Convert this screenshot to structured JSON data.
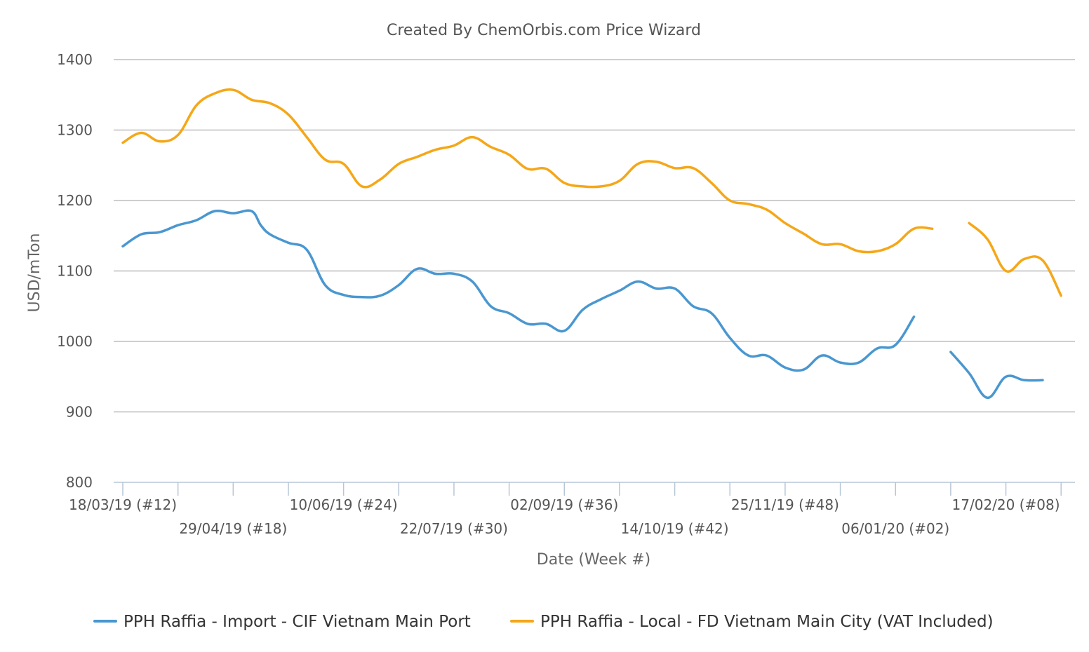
{
  "chart_data": {
    "type": "line",
    "title": "Created By ChemOrbis.com Price Wizard",
    "xlabel": "Date (Week #)",
    "ylabel": "USD/mTon",
    "ylim": [
      800,
      1400
    ],
    "yticks": [
      800,
      900,
      1000,
      1100,
      1200,
      1300,
      1400
    ],
    "grid": true,
    "legend_position": "bottom",
    "x_tick_labels": [
      {
        "week": 0,
        "label": "18/03/19 (#12)"
      },
      {
        "week": 6,
        "label": "29/04/19 (#18)"
      },
      {
        "week": 12,
        "label": "10/06/19 (#24)"
      },
      {
        "week": 18,
        "label": "22/07/19 (#30)"
      },
      {
        "week": 24,
        "label": "02/09/19 (#36)"
      },
      {
        "week": 30,
        "label": "14/10/19 (#42)"
      },
      {
        "week": 36,
        "label": "25/11/19 (#48)"
      },
      {
        "week": 42,
        "label": "06/01/20 (#02)"
      },
      {
        "week": 48,
        "label": "17/02/20 (#08)"
      }
    ],
    "series": [
      {
        "name": "PPH Raffia - Import - CIF Vietnam Main Port",
        "color": "#4a97d0",
        "points": [
          [
            0,
            1135
          ],
          [
            1,
            1152
          ],
          [
            2,
            1155
          ],
          [
            3,
            1165
          ],
          [
            4,
            1172
          ],
          [
            5,
            1185
          ],
          [
            6,
            1182
          ],
          [
            7,
            1185
          ],
          [
            7.5,
            1165
          ],
          [
            8,
            1152
          ],
          [
            9,
            1140
          ],
          [
            10,
            1130
          ],
          [
            11,
            1080
          ],
          [
            12,
            1066
          ],
          [
            13,
            1063
          ],
          [
            14,
            1065
          ],
          [
            15,
            1080
          ],
          [
            16,
            1103
          ],
          [
            17,
            1096
          ],
          [
            18,
            1096
          ],
          [
            19,
            1085
          ],
          [
            20,
            1050
          ],
          [
            21,
            1040
          ],
          [
            22,
            1025
          ],
          [
            23,
            1025
          ],
          [
            24,
            1015
          ],
          [
            25,
            1045
          ],
          [
            26,
            1060
          ],
          [
            27,
            1072
          ],
          [
            28,
            1085
          ],
          [
            29,
            1075
          ],
          [
            30,
            1075
          ],
          [
            31,
            1050
          ],
          [
            32,
            1040
          ],
          [
            33,
            1005
          ],
          [
            34,
            980
          ],
          [
            35,
            980
          ],
          [
            36,
            963
          ],
          [
            37,
            960
          ],
          [
            38,
            980
          ],
          [
            39,
            970
          ],
          [
            40,
            970
          ],
          [
            41,
            990
          ],
          [
            42,
            995
          ],
          [
            43,
            1035
          ],
          [
            45,
            985
          ],
          [
            46,
            955
          ],
          [
            47,
            920
          ],
          [
            48,
            950
          ],
          [
            49,
            945
          ],
          [
            50,
            945
          ]
        ]
      },
      {
        "name": "PPH Raffia - Local - FD Vietnam Main City (VAT Included)",
        "color": "#f5a718",
        "points": [
          [
            0,
            1282
          ],
          [
            1,
            1296
          ],
          [
            2,
            1284
          ],
          [
            3,
            1293
          ],
          [
            4,
            1335
          ],
          [
            5,
            1352
          ],
          [
            6,
            1357
          ],
          [
            7,
            1343
          ],
          [
            8,
            1338
          ],
          [
            9,
            1322
          ],
          [
            10,
            1290
          ],
          [
            11,
            1258
          ],
          [
            12,
            1252
          ],
          [
            13,
            1220
          ],
          [
            14,
            1230
          ],
          [
            15,
            1252
          ],
          [
            16,
            1262
          ],
          [
            17,
            1272
          ],
          [
            18,
            1278
          ],
          [
            19,
            1290
          ],
          [
            20,
            1276
          ],
          [
            21,
            1265
          ],
          [
            22,
            1245
          ],
          [
            23,
            1245
          ],
          [
            24,
            1225
          ],
          [
            25,
            1220
          ],
          [
            26,
            1220
          ],
          [
            27,
            1228
          ],
          [
            28,
            1252
          ],
          [
            29,
            1255
          ],
          [
            30,
            1246
          ],
          [
            31,
            1246
          ],
          [
            32,
            1225
          ],
          [
            33,
            1200
          ],
          [
            34,
            1195
          ],
          [
            35,
            1187
          ],
          [
            36,
            1168
          ],
          [
            37,
            1153
          ],
          [
            38,
            1138
          ],
          [
            39,
            1138
          ],
          [
            40,
            1128
          ],
          [
            41,
            1128
          ],
          [
            42,
            1138
          ],
          [
            43,
            1160
          ],
          [
            44,
            1160
          ],
          [
            46,
            1168
          ],
          [
            47,
            1145
          ],
          [
            48,
            1100
          ],
          [
            49,
            1117
          ],
          [
            50,
            1115
          ],
          [
            51,
            1065
          ]
        ]
      }
    ]
  }
}
